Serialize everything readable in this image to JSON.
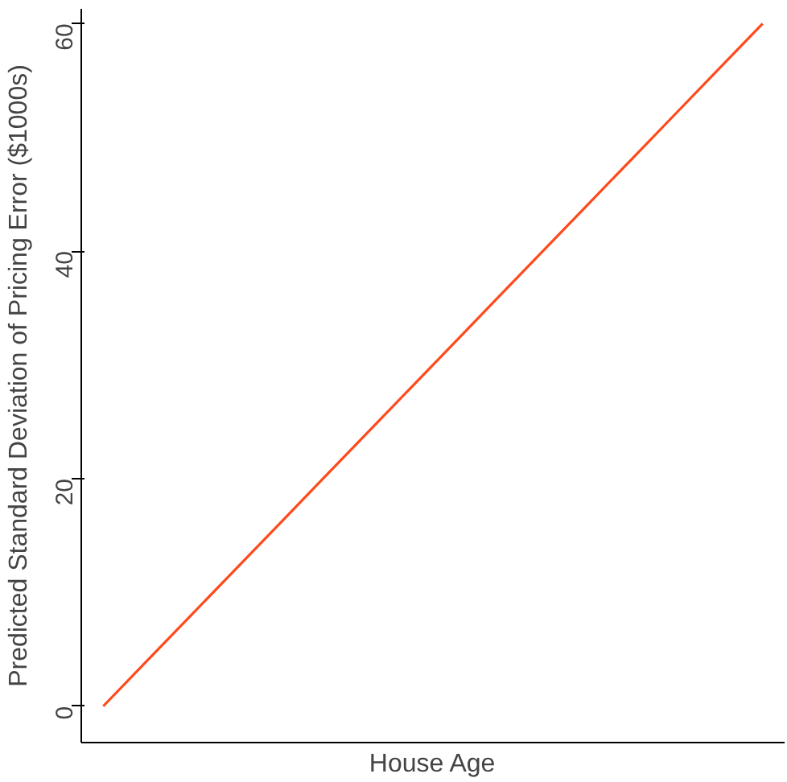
{
  "chart_data": {
    "type": "line",
    "xlabel": "House Age",
    "ylabel": "Predicted Standard Deviation of Pricing Error ($1000s)",
    "categories": [
      null,
      null,
      null,
      null,
      null,
      null,
      null,
      null,
      null,
      null,
      null,
      null,
      null,
      null,
      null,
      null
    ],
    "values": [
      0,
      4,
      8,
      12,
      16,
      20,
      24,
      28,
      32,
      36,
      40,
      44,
      48,
      52,
      56,
      60
    ],
    "color": "#ff4a1c",
    "ylim": [
      -3.2,
      61.3
    ],
    "yticks": [
      0,
      20,
      40,
      60
    ]
  }
}
